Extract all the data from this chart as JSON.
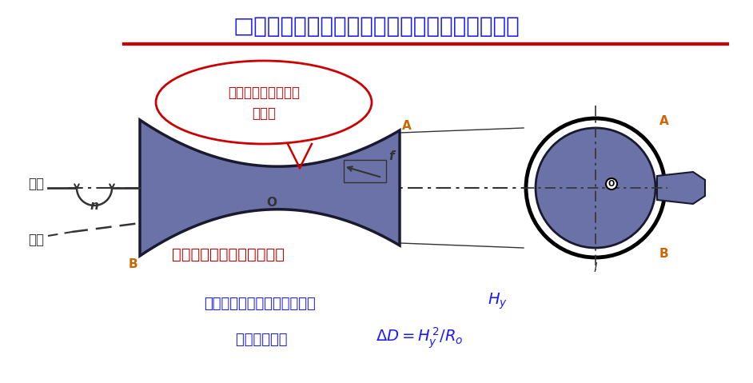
{
  "title": "□车床纵向导轨与主轴在垂直面内有平行度误差",
  "title_color": "#1a1aff",
  "title_underline_color": "#cc0000",
  "bg_color": "#ffffff",
  "spindle_label": "主轴",
  "guide_label": "导轨",
  "callout_text_line1": "正视图上导轨与主轴",
  "callout_text_line2": "不平行",
  "callout_color": "#cc0000",
  "saddle_label": "鞍形（轴剖面内为双曲线）",
  "saddle_color": "#cc0000",
  "workpiece_color": "#6b72a8",
  "workpiece_edge": "#1a1a2e",
  "label_color": "#cc6600",
  "axis_color": "#333333",
  "formula_color": "#1a1aff",
  "label_O_color": "#333333",
  "label_n_color": "#333333"
}
